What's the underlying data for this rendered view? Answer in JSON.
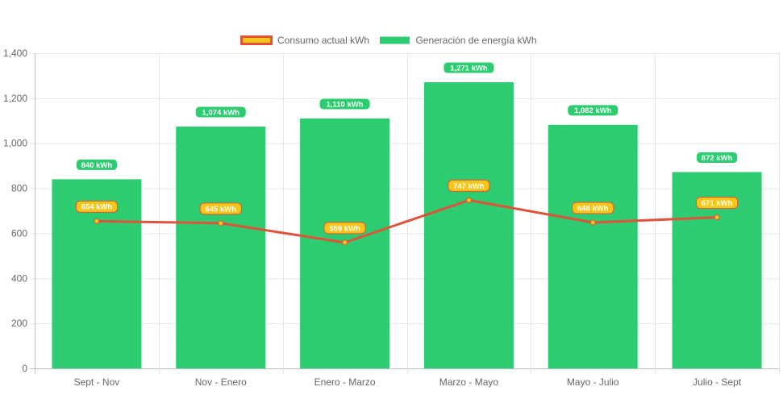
{
  "chart_data": {
    "type": "bar",
    "categories": [
      "Sept - Nov",
      "Nov - Enero",
      "Enero - Marzo",
      "Marzo - Mayo",
      "Mayo - Julio",
      "Julio - Sept"
    ],
    "ylim": [
      0,
      1400
    ],
    "yticks": [
      0,
      200,
      400,
      600,
      800,
      1000,
      1200,
      1400
    ],
    "ytick_labels": [
      "0",
      "200",
      "400",
      "600",
      "800",
      "1,000",
      "1,200",
      "1,400"
    ],
    "grid": true,
    "legend_position": "top-center",
    "series": [
      {
        "name": "Consumo actual kWh",
        "type": "line",
        "values": [
          654,
          645,
          559,
          747,
          648,
          671
        ],
        "labels": [
          "654 kWh",
          "645 kWh",
          "559 kWh",
          "747 kWh",
          "648 kWh",
          "671 kWh"
        ],
        "color": "#e0533a",
        "fill_color": "#f5c518"
      },
      {
        "name": "Generación de energía kWh",
        "type": "bar",
        "values": [
          840,
          1074,
          1110,
          1271,
          1082,
          872
        ],
        "labels": [
          "840 kWh",
          "1,074 kWh",
          "1,110 kWh",
          "1,271 kWh",
          "1,082 kWh",
          "872 kWh"
        ],
        "color": "#2ecc71"
      }
    ]
  }
}
